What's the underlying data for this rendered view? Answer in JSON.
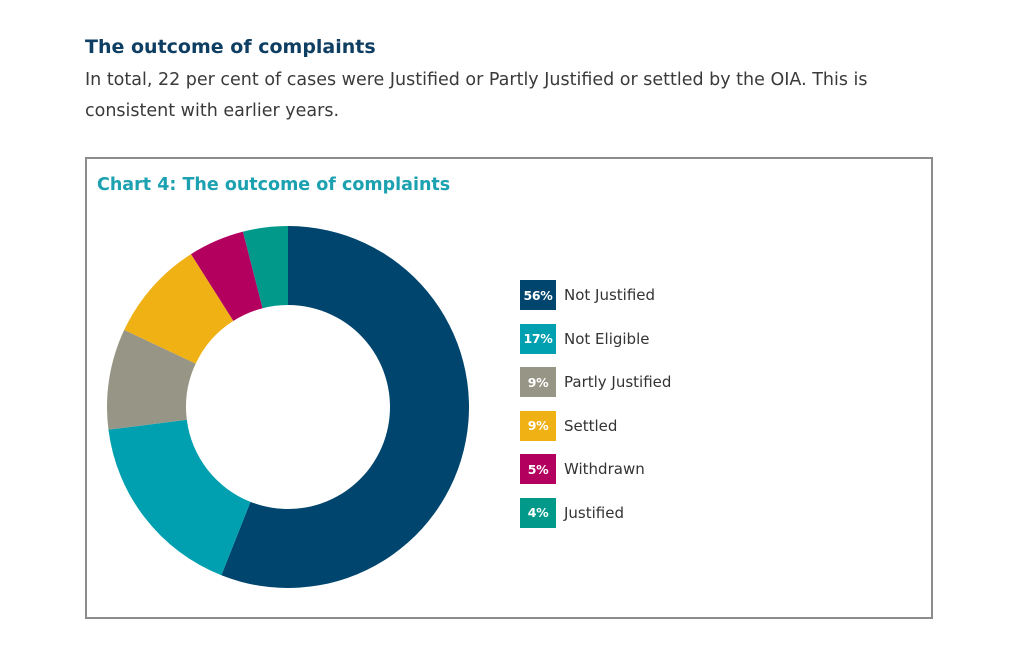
{
  "heading": "The outcome of complaints",
  "intro": "In total, 22 per cent of cases were Justified or Partly Justified or settled by the OIA. This is consistent with earlier years.",
  "chart_data": {
    "type": "pie",
    "subtype": "donut",
    "title": "Chart 4: The outcome of complaints",
    "legend_position": "right",
    "slices": [
      {
        "label": "Not Justified",
        "value": 56,
        "display": "56%",
        "color": "#00456e"
      },
      {
        "label": "Not Eligible",
        "value": 17,
        "display": "17%",
        "color": "#00a0b0"
      },
      {
        "label": "Partly Justified",
        "value": 9,
        "display": "9%",
        "color": "#979585"
      },
      {
        "label": "Settled",
        "value": 9,
        "display": "9%",
        "color": "#f0b115"
      },
      {
        "label": "Withdrawn",
        "value": 5,
        "display": "5%",
        "color": "#b3005f"
      },
      {
        "label": "Justified",
        "value": 4,
        "display": "4%",
        "color": "#00998a"
      }
    ]
  }
}
